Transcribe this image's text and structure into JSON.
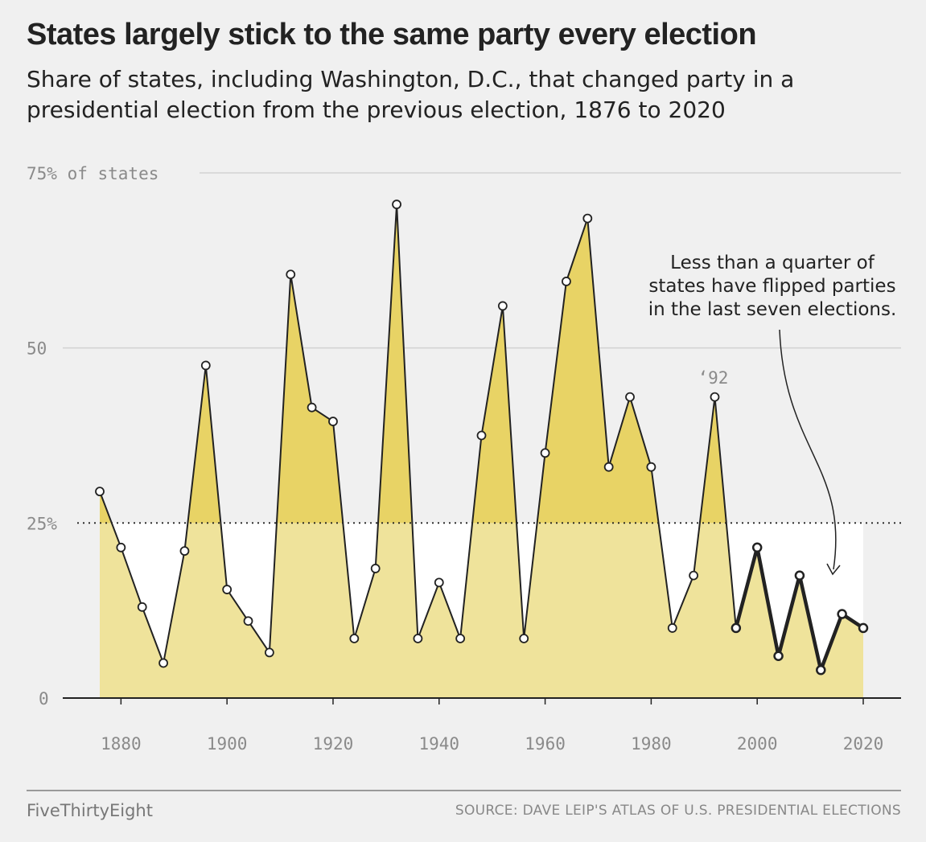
{
  "title": "States largely stick to the same party every election",
  "subtitle": "Share of states, including Washington, D.C., that changed party in a presidential election from the previous election, 1876 to 2020",
  "footer": {
    "brand": "FiveThirtyEight",
    "source": "SOURCE: DAVE LEIP'S ATLAS OF U.S. PRESIDENTIAL ELECTIONS"
  },
  "colors": {
    "background": "#f0f0f0",
    "fill_below": "#efe39b",
    "fill_above": "#e8d365",
    "line": "#222222",
    "below_threshold_area": "#ffffff"
  },
  "chart_data": {
    "type": "area",
    "x": [
      1876,
      1880,
      1884,
      1888,
      1892,
      1896,
      1900,
      1904,
      1908,
      1912,
      1916,
      1920,
      1924,
      1928,
      1932,
      1936,
      1940,
      1944,
      1948,
      1952,
      1956,
      1960,
      1964,
      1968,
      1972,
      1976,
      1980,
      1984,
      1988,
      1992,
      1996,
      2000,
      2004,
      2008,
      2012,
      2016,
      2020
    ],
    "values": [
      29.5,
      21.5,
      13,
      5,
      21,
      47.5,
      15.5,
      11,
      6.5,
      60.5,
      41.5,
      39.5,
      8.5,
      18.5,
      70.5,
      8.5,
      16.5,
      8.5,
      37.5,
      56,
      8.5,
      35,
      59.5,
      68.5,
      33,
      43,
      33,
      10,
      17.5,
      43,
      10,
      21.5,
      6,
      17.5,
      4,
      12,
      10
    ],
    "ylim": [
      0,
      75
    ],
    "xlim": [
      1872,
      2025
    ],
    "y_ticks": [
      {
        "value": 75,
        "label": "75% of states"
      },
      {
        "value": 50,
        "label": "50"
      },
      {
        "value": 25,
        "label": "25%"
      },
      {
        "value": 0,
        "label": "0"
      }
    ],
    "x_ticks": [
      1880,
      1900,
      1920,
      1940,
      1960,
      1980,
      2000,
      2020
    ],
    "threshold": 25,
    "highlight_from": 1996,
    "annotations": {
      "year_label": {
        "x": 1992,
        "text": "‘92"
      },
      "note": [
        "Less than a quarter of",
        "states have flipped parties",
        "in the last seven elections."
      ]
    },
    "grid": true
  }
}
